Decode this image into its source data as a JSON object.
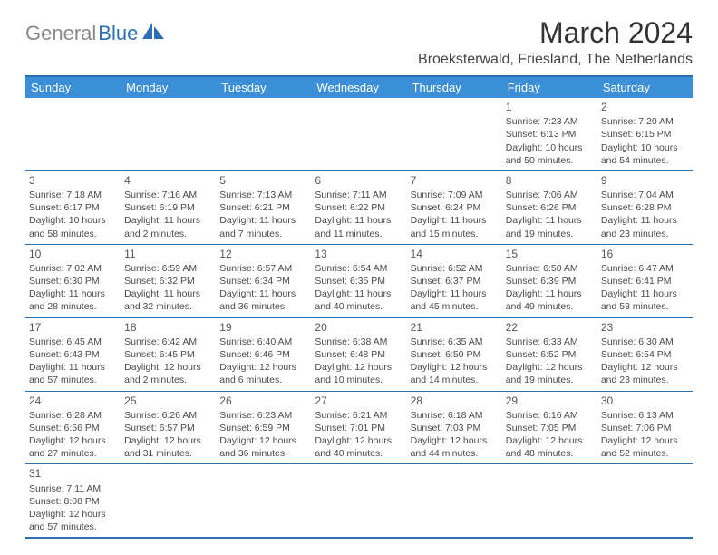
{
  "logo": {
    "gray": "General",
    "blue": "Blue"
  },
  "title": "March 2024",
  "location": "Broeksterwald, Friesland, The Netherlands",
  "colors": {
    "header_bg": "#3a8fd8",
    "header_fg": "#ffffff",
    "border": "#2c6fb3",
    "text": "#4a4a4a",
    "logo_gray": "#888888",
    "logo_blue": "#2c6fb3"
  },
  "day_headers": [
    "Sunday",
    "Monday",
    "Tuesday",
    "Wednesday",
    "Thursday",
    "Friday",
    "Saturday"
  ],
  "weeks": [
    [
      null,
      null,
      null,
      null,
      null,
      {
        "n": "1",
        "sr": "Sunrise: 7:23 AM",
        "ss": "Sunset: 6:13 PM",
        "d1": "Daylight: 10 hours",
        "d2": "and 50 minutes."
      },
      {
        "n": "2",
        "sr": "Sunrise: 7:20 AM",
        "ss": "Sunset: 6:15 PM",
        "d1": "Daylight: 10 hours",
        "d2": "and 54 minutes."
      }
    ],
    [
      {
        "n": "3",
        "sr": "Sunrise: 7:18 AM",
        "ss": "Sunset: 6:17 PM",
        "d1": "Daylight: 10 hours",
        "d2": "and 58 minutes."
      },
      {
        "n": "4",
        "sr": "Sunrise: 7:16 AM",
        "ss": "Sunset: 6:19 PM",
        "d1": "Daylight: 11 hours",
        "d2": "and 2 minutes."
      },
      {
        "n": "5",
        "sr": "Sunrise: 7:13 AM",
        "ss": "Sunset: 6:21 PM",
        "d1": "Daylight: 11 hours",
        "d2": "and 7 minutes."
      },
      {
        "n": "6",
        "sr": "Sunrise: 7:11 AM",
        "ss": "Sunset: 6:22 PM",
        "d1": "Daylight: 11 hours",
        "d2": "and 11 minutes."
      },
      {
        "n": "7",
        "sr": "Sunrise: 7:09 AM",
        "ss": "Sunset: 6:24 PM",
        "d1": "Daylight: 11 hours",
        "d2": "and 15 minutes."
      },
      {
        "n": "8",
        "sr": "Sunrise: 7:06 AM",
        "ss": "Sunset: 6:26 PM",
        "d1": "Daylight: 11 hours",
        "d2": "and 19 minutes."
      },
      {
        "n": "9",
        "sr": "Sunrise: 7:04 AM",
        "ss": "Sunset: 6:28 PM",
        "d1": "Daylight: 11 hours",
        "d2": "and 23 minutes."
      }
    ],
    [
      {
        "n": "10",
        "sr": "Sunrise: 7:02 AM",
        "ss": "Sunset: 6:30 PM",
        "d1": "Daylight: 11 hours",
        "d2": "and 28 minutes."
      },
      {
        "n": "11",
        "sr": "Sunrise: 6:59 AM",
        "ss": "Sunset: 6:32 PM",
        "d1": "Daylight: 11 hours",
        "d2": "and 32 minutes."
      },
      {
        "n": "12",
        "sr": "Sunrise: 6:57 AM",
        "ss": "Sunset: 6:34 PM",
        "d1": "Daylight: 11 hours",
        "d2": "and 36 minutes."
      },
      {
        "n": "13",
        "sr": "Sunrise: 6:54 AM",
        "ss": "Sunset: 6:35 PM",
        "d1": "Daylight: 11 hours",
        "d2": "and 40 minutes."
      },
      {
        "n": "14",
        "sr": "Sunrise: 6:52 AM",
        "ss": "Sunset: 6:37 PM",
        "d1": "Daylight: 11 hours",
        "d2": "and 45 minutes."
      },
      {
        "n": "15",
        "sr": "Sunrise: 6:50 AM",
        "ss": "Sunset: 6:39 PM",
        "d1": "Daylight: 11 hours",
        "d2": "and 49 minutes."
      },
      {
        "n": "16",
        "sr": "Sunrise: 6:47 AM",
        "ss": "Sunset: 6:41 PM",
        "d1": "Daylight: 11 hours",
        "d2": "and 53 minutes."
      }
    ],
    [
      {
        "n": "17",
        "sr": "Sunrise: 6:45 AM",
        "ss": "Sunset: 6:43 PM",
        "d1": "Daylight: 11 hours",
        "d2": "and 57 minutes."
      },
      {
        "n": "18",
        "sr": "Sunrise: 6:42 AM",
        "ss": "Sunset: 6:45 PM",
        "d1": "Daylight: 12 hours",
        "d2": "and 2 minutes."
      },
      {
        "n": "19",
        "sr": "Sunrise: 6:40 AM",
        "ss": "Sunset: 6:46 PM",
        "d1": "Daylight: 12 hours",
        "d2": "and 6 minutes."
      },
      {
        "n": "20",
        "sr": "Sunrise: 6:38 AM",
        "ss": "Sunset: 6:48 PM",
        "d1": "Daylight: 12 hours",
        "d2": "and 10 minutes."
      },
      {
        "n": "21",
        "sr": "Sunrise: 6:35 AM",
        "ss": "Sunset: 6:50 PM",
        "d1": "Daylight: 12 hours",
        "d2": "and 14 minutes."
      },
      {
        "n": "22",
        "sr": "Sunrise: 6:33 AM",
        "ss": "Sunset: 6:52 PM",
        "d1": "Daylight: 12 hours",
        "d2": "and 19 minutes."
      },
      {
        "n": "23",
        "sr": "Sunrise: 6:30 AM",
        "ss": "Sunset: 6:54 PM",
        "d1": "Daylight: 12 hours",
        "d2": "and 23 minutes."
      }
    ],
    [
      {
        "n": "24",
        "sr": "Sunrise: 6:28 AM",
        "ss": "Sunset: 6:56 PM",
        "d1": "Daylight: 12 hours",
        "d2": "and 27 minutes."
      },
      {
        "n": "25",
        "sr": "Sunrise: 6:26 AM",
        "ss": "Sunset: 6:57 PM",
        "d1": "Daylight: 12 hours",
        "d2": "and 31 minutes."
      },
      {
        "n": "26",
        "sr": "Sunrise: 6:23 AM",
        "ss": "Sunset: 6:59 PM",
        "d1": "Daylight: 12 hours",
        "d2": "and 36 minutes."
      },
      {
        "n": "27",
        "sr": "Sunrise: 6:21 AM",
        "ss": "Sunset: 7:01 PM",
        "d1": "Daylight: 12 hours",
        "d2": "and 40 minutes."
      },
      {
        "n": "28",
        "sr": "Sunrise: 6:18 AM",
        "ss": "Sunset: 7:03 PM",
        "d1": "Daylight: 12 hours",
        "d2": "and 44 minutes."
      },
      {
        "n": "29",
        "sr": "Sunrise: 6:16 AM",
        "ss": "Sunset: 7:05 PM",
        "d1": "Daylight: 12 hours",
        "d2": "and 48 minutes."
      },
      {
        "n": "30",
        "sr": "Sunrise: 6:13 AM",
        "ss": "Sunset: 7:06 PM",
        "d1": "Daylight: 12 hours",
        "d2": "and 52 minutes."
      }
    ],
    [
      {
        "n": "31",
        "sr": "Sunrise: 7:11 AM",
        "ss": "Sunset: 8:08 PM",
        "d1": "Daylight: 12 hours",
        "d2": "and 57 minutes."
      },
      null,
      null,
      null,
      null,
      null,
      null
    ]
  ]
}
